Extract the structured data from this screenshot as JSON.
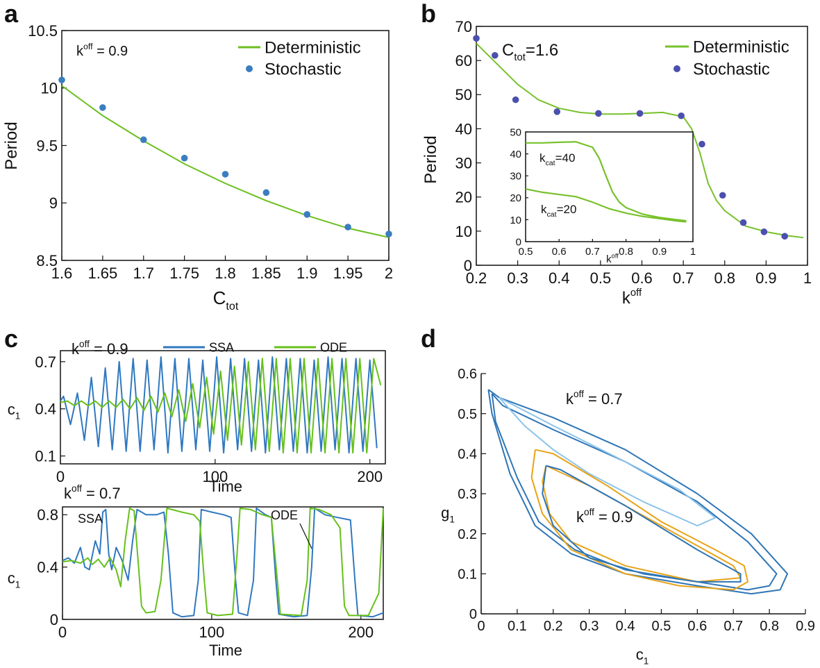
{
  "chart_data": [
    {
      "type": "line",
      "panel": "a",
      "x_label": {
        "text": "C",
        "sub": "tot"
      },
      "y_label": "Period",
      "annotations": [
        {
          "text": "k",
          "sup": "off",
          "after": " = 0.9"
        }
      ],
      "legend": "upper right",
      "xlim": [
        1.6,
        2
      ],
      "ylim": [
        8.5,
        10.5
      ],
      "xticks": [
        1.6,
        1.65,
        1.7,
        1.75,
        1.8,
        1.85,
        1.9,
        1.95,
        2
      ],
      "yticks": [
        8.5,
        9,
        9.5,
        10,
        10.5
      ],
      "series": [
        {
          "name": "Deterministic",
          "color": "#6cbf1f",
          "mode": "line",
          "x": [
            1.6,
            1.65,
            1.7,
            1.75,
            1.8,
            1.85,
            1.9,
            1.95,
            2
          ],
          "values": [
            10.02,
            9.76,
            9.54,
            9.34,
            9.17,
            9.02,
            8.89,
            8.78,
            8.7
          ]
        },
        {
          "name": "Stochastic",
          "color": "#3a7ebf",
          "mode": "markers",
          "x": [
            1.6,
            1.65,
            1.7,
            1.75,
            1.8,
            1.85,
            1.9,
            1.95,
            2
          ],
          "values": [
            10.07,
            9.83,
            9.55,
            9.39,
            9.25,
            9.09,
            8.9,
            8.79,
            8.73
          ]
        }
      ]
    },
    {
      "type": "line",
      "panel": "b",
      "x_label": {
        "text": "k",
        "sup": "off"
      },
      "y_label": "Period",
      "annotations": [
        {
          "text": "C",
          "sub": "tot",
          "after": "=1.6"
        }
      ],
      "legend": "upper right",
      "xlim": [
        0.2,
        1
      ],
      "ylim": [
        0,
        70
      ],
      "xticks": [
        0.2,
        0.3,
        0.4,
        0.5,
        0.6,
        0.7,
        0.8,
        0.9,
        1
      ],
      "yticks": [
        0,
        10,
        20,
        30,
        40,
        50,
        60,
        70
      ],
      "series": [
        {
          "name": "Deterministic",
          "color": "#77c12a",
          "mode": "line",
          "x": [
            0.2,
            0.25,
            0.3,
            0.35,
            0.4,
            0.45,
            0.5,
            0.55,
            0.6,
            0.65,
            0.7,
            0.72,
            0.74,
            0.76,
            0.78,
            0.8,
            0.85,
            0.9,
            0.95,
            0.99
          ],
          "values": [
            65,
            59,
            53,
            48.5,
            46,
            44.8,
            44.3,
            44.3,
            44.5,
            44.8,
            43.5,
            40,
            33,
            24,
            19,
            16,
            11.5,
            9.8,
            8.7,
            8.1
          ]
        },
        {
          "name": "Stochastic",
          "color": "#4b4fae",
          "mode": "markers",
          "x": [
            0.2,
            0.245,
            0.295,
            0.395,
            0.495,
            0.595,
            0.695,
            0.745,
            0.795,
            0.845,
            0.895,
            0.945
          ],
          "values": [
            66.5,
            61.5,
            48.5,
            45,
            44.5,
            44.5,
            43.8,
            35.5,
            20.5,
            12.5,
            9.8,
            8.5
          ]
        }
      ],
      "inset": {
        "type": "line",
        "x_label": {
          "text": "k",
          "sup": "off"
        },
        "annotations": [
          {
            "text": "k",
            "sub": "cat",
            "after": "=40"
          },
          {
            "text": "k",
            "sub": "cat",
            "after": "=20"
          }
        ],
        "xlim": [
          0.5,
          1
        ],
        "ylim": [
          0,
          50
        ],
        "xticks": [
          0.5,
          0.6,
          0.7,
          0.8,
          0.9,
          1
        ],
        "yticks": [
          0,
          10,
          20,
          30,
          40,
          50
        ],
        "series": [
          {
            "color": "#77c12a",
            "mode": "line",
            "x": [
              0.5,
              0.55,
              0.6,
              0.65,
              0.7,
              0.72,
              0.74,
              0.76,
              0.78,
              0.8,
              0.85,
              0.9,
              0.95,
              0.98
            ],
            "values": [
              45,
              45,
              45.3,
              45.5,
              43,
              38,
              30,
              22.5,
              18,
              15.5,
              12.5,
              11,
              10,
              9.5
            ]
          },
          {
            "color": "#77c12a",
            "mode": "line",
            "x": [
              0.5,
              0.55,
              0.6,
              0.65,
              0.7,
              0.75,
              0.8,
              0.85,
              0.9,
              0.95,
              0.98
            ],
            "values": [
              24,
              22.5,
              21.5,
              20.5,
              18,
              15,
              13,
              11.5,
              10.5,
              9.5,
              9
            ]
          }
        ]
      }
    },
    {
      "type": "line",
      "panel": "c",
      "x_label": "Time",
      "y_label": {
        "text": "c",
        "sub": "1"
      },
      "annotations": [
        {
          "text": "k",
          "sup": "off",
          "after": " = 0.9"
        }
      ],
      "legend": "upper center",
      "xlim": [
        0,
        210
      ],
      "ylim": [
        0.05,
        0.77
      ],
      "xticks": [
        0,
        100,
        200
      ],
      "yticks": [
        0.1,
        0.4,
        0.7
      ],
      "series": [
        {
          "name": "SSA",
          "color": "#2f78c0",
          "mode": "line",
          "x": [
            0,
            2,
            6.5,
            11,
            15.5,
            20,
            24.5,
            29,
            33.5,
            38,
            42.5,
            47,
            51.5,
            56,
            60.5,
            65,
            69.5,
            74,
            78.5,
            83,
            87.5,
            92,
            96.5,
            101,
            105.5,
            110,
            114.5,
            119,
            123.5,
            128,
            132.5,
            137,
            141.5,
            146,
            150.5,
            155,
            159.5,
            164,
            168.5,
            173,
            177.5,
            182,
            186.5,
            191,
            195.5,
            200,
            204.5
          ],
          "values": [
            0.45,
            0.48,
            0.3,
            0.5,
            0.2,
            0.6,
            0.16,
            0.66,
            0.14,
            0.7,
            0.13,
            0.72,
            0.13,
            0.71,
            0.14,
            0.73,
            0.12,
            0.72,
            0.13,
            0.72,
            0.14,
            0.71,
            0.13,
            0.73,
            0.12,
            0.72,
            0.14,
            0.72,
            0.13,
            0.71,
            0.12,
            0.73,
            0.14,
            0.72,
            0.13,
            0.72,
            0.12,
            0.71,
            0.13,
            0.73,
            0.14,
            0.72,
            0.12,
            0.72,
            0.13,
            0.71,
            0.15
          ]
        },
        {
          "name": "ODE",
          "color": "#66c01a",
          "mode": "line",
          "x": [
            0,
            4.5,
            9,
            13.5,
            18,
            22.5,
            27,
            31.5,
            36,
            40.5,
            45,
            49.5,
            54,
            58.5,
            63,
            67.5,
            72,
            76.5,
            81,
            85.5,
            90,
            94.5,
            99,
            103.5,
            108,
            112.5,
            117,
            121.5,
            126,
            130.5,
            135,
            139.5,
            144,
            148.5,
            153,
            157.5,
            162,
            166.5,
            171,
            175.5,
            180,
            184.5,
            189,
            193.5,
            198,
            202.5,
            207
          ],
          "values": [
            0.44,
            0.45,
            0.42,
            0.45,
            0.42,
            0.45,
            0.41,
            0.45,
            0.41,
            0.46,
            0.4,
            0.47,
            0.39,
            0.48,
            0.38,
            0.5,
            0.35,
            0.52,
            0.32,
            0.56,
            0.28,
            0.6,
            0.24,
            0.64,
            0.2,
            0.67,
            0.17,
            0.7,
            0.14,
            0.72,
            0.13,
            0.72,
            0.12,
            0.72,
            0.12,
            0.72,
            0.12,
            0.72,
            0.12,
            0.72,
            0.12,
            0.72,
            0.12,
            0.72,
            0.12,
            0.72,
            0.55
          ]
        }
      ]
    },
    {
      "type": "line",
      "x_label": "Time",
      "y_label": {
        "text": "c",
        "sub": "1"
      },
      "annotations": [
        {
          "text": "k",
          "sup": "off",
          "after": " = 0.7"
        },
        {
          "text": "SSA"
        },
        {
          "text": "ODE"
        }
      ],
      "xlim": [
        0,
        215
      ],
      "ylim": [
        0,
        0.86
      ],
      "xticks": [
        0,
        100,
        200
      ],
      "yticks": [
        0,
        0.4,
        0.8
      ],
      "series": [
        {
          "color": "#2f78c0",
          "mode": "line",
          "x": [
            0,
            4,
            8,
            12,
            15,
            18,
            22,
            25,
            27,
            29,
            31,
            33,
            36,
            40,
            44,
            47,
            50,
            56,
            63,
            68,
            71,
            74,
            80,
            88,
            91,
            93,
            100,
            108,
            113,
            116,
            118,
            124,
            128,
            130,
            136,
            140,
            143,
            145,
            155,
            164,
            167,
            169,
            176,
            184,
            193,
            196,
            198,
            208,
            215
          ],
          "values": [
            0.45,
            0.47,
            0.43,
            0.55,
            0.4,
            0.38,
            0.6,
            0.5,
            0.82,
            0.84,
            0.5,
            0.38,
            0.55,
            0.45,
            0.3,
            0.6,
            0.84,
            0.8,
            0.8,
            0.82,
            0.5,
            0.05,
            0.02,
            0.03,
            0.3,
            0.84,
            0.82,
            0.8,
            0.78,
            0.3,
            0.05,
            0.03,
            0.3,
            0.85,
            0.8,
            0.78,
            0.3,
            0.04,
            0.02,
            0.03,
            0.4,
            0.85,
            0.8,
            0.78,
            0.76,
            0.3,
            0.03,
            0.02,
            0.05
          ]
        },
        {
          "color": "#66c01a",
          "mode": "line",
          "x": [
            0,
            6,
            12,
            17,
            20,
            24,
            28,
            32,
            36,
            39,
            42,
            45,
            48,
            51,
            53,
            56,
            62,
            66,
            70,
            80,
            88,
            92,
            95,
            97,
            104,
            114,
            117,
            119,
            126,
            134,
            140,
            144,
            146,
            160,
            164,
            166,
            172,
            180,
            186,
            189,
            192,
            205,
            212,
            215
          ],
          "values": [
            0.44,
            0.45,
            0.43,
            0.47,
            0.42,
            0.46,
            0.4,
            0.47,
            0.38,
            0.25,
            0.6,
            0.85,
            0.83,
            0.4,
            0.1,
            0.05,
            0.06,
            0.3,
            0.85,
            0.82,
            0.8,
            0.75,
            0.3,
            0.05,
            0.03,
            0.04,
            0.5,
            0.85,
            0.84,
            0.8,
            0.78,
            0.3,
            0.04,
            0.03,
            0.3,
            0.85,
            0.84,
            0.8,
            0.7,
            0.1,
            0.03,
            0.03,
            0.2,
            0.85
          ]
        }
      ]
    },
    {
      "type": "line",
      "panel": "d",
      "x_label": {
        "text": "c",
        "sub": "1"
      },
      "y_label": {
        "text": "g",
        "sub": "1"
      },
      "annotations": [
        {
          "text": "k",
          "sup": "off",
          "after": " = 0.7"
        },
        {
          "text": "k",
          "sup": "off",
          "after": " = 0.9"
        }
      ],
      "xlim": [
        0,
        0.9
      ],
      "ylim": [
        0,
        0.6
      ],
      "xticks": [
        0,
        0.1,
        0.2,
        0.3,
        0.4,
        0.5,
        0.6,
        0.7,
        0.8,
        0.9
      ],
      "yticks": [
        0,
        0.1,
        0.2,
        0.3,
        0.4,
        0.5,
        0.6
      ],
      "series": [
        {
          "color": "#2e75b6",
          "mode": "line",
          "x": [
            0.02,
            0.05,
            0.2,
            0.4,
            0.6,
            0.75,
            0.85,
            0.83,
            0.75,
            0.6,
            0.4,
            0.25,
            0.15,
            0.08,
            0.03,
            0.02
          ],
          "values": [
            0.56,
            0.54,
            0.49,
            0.41,
            0.3,
            0.2,
            0.1,
            0.06,
            0.05,
            0.07,
            0.1,
            0.15,
            0.22,
            0.35,
            0.5,
            0.56
          ]
        },
        {
          "color": "#2e75b6",
          "mode": "line",
          "x": [
            0.03,
            0.06,
            0.2,
            0.4,
            0.6,
            0.74,
            0.82,
            0.8,
            0.74,
            0.6,
            0.4,
            0.26,
            0.16,
            0.1,
            0.04,
            0.03
          ],
          "values": [
            0.55,
            0.52,
            0.46,
            0.38,
            0.28,
            0.18,
            0.1,
            0.07,
            0.06,
            0.08,
            0.11,
            0.16,
            0.23,
            0.34,
            0.48,
            0.55
          ]
        },
        {
          "color": "#8cc3ea",
          "mode": "line",
          "x": [
            0.05,
            0.2,
            0.4,
            0.55,
            0.65,
            0.6,
            0.45,
            0.3,
            0.2,
            0.12,
            0.05
          ],
          "values": [
            0.54,
            0.47,
            0.38,
            0.31,
            0.24,
            0.22,
            0.28,
            0.35,
            0.41,
            0.47,
            0.54
          ]
        },
        {
          "color": "#e8a317",
          "mode": "line",
          "x": [
            0.15,
            0.2,
            0.35,
            0.5,
            0.65,
            0.73,
            0.74,
            0.7,
            0.55,
            0.4,
            0.25,
            0.17,
            0.14,
            0.15
          ],
          "values": [
            0.41,
            0.4,
            0.32,
            0.23,
            0.16,
            0.12,
            0.08,
            0.06,
            0.07,
            0.1,
            0.16,
            0.25,
            0.34,
            0.41
          ]
        },
        {
          "color": "#e8a317",
          "mode": "line",
          "x": [
            0.18,
            0.3,
            0.5,
            0.7,
            0.72,
            0.6,
            0.4,
            0.25,
            0.19,
            0.17,
            0.18
          ],
          "values": [
            0.37,
            0.32,
            0.22,
            0.12,
            0.09,
            0.08,
            0.12,
            0.18,
            0.25,
            0.33,
            0.37
          ]
        },
        {
          "color": "#2e75b6",
          "mode": "line",
          "x": [
            0.18,
            0.22,
            0.4,
            0.6,
            0.72,
            0.72,
            0.6,
            0.45,
            0.3,
            0.2,
            0.17,
            0.18
          ],
          "values": [
            0.37,
            0.36,
            0.27,
            0.16,
            0.1,
            0.08,
            0.08,
            0.1,
            0.14,
            0.22,
            0.3,
            0.37
          ]
        }
      ]
    }
  ]
}
